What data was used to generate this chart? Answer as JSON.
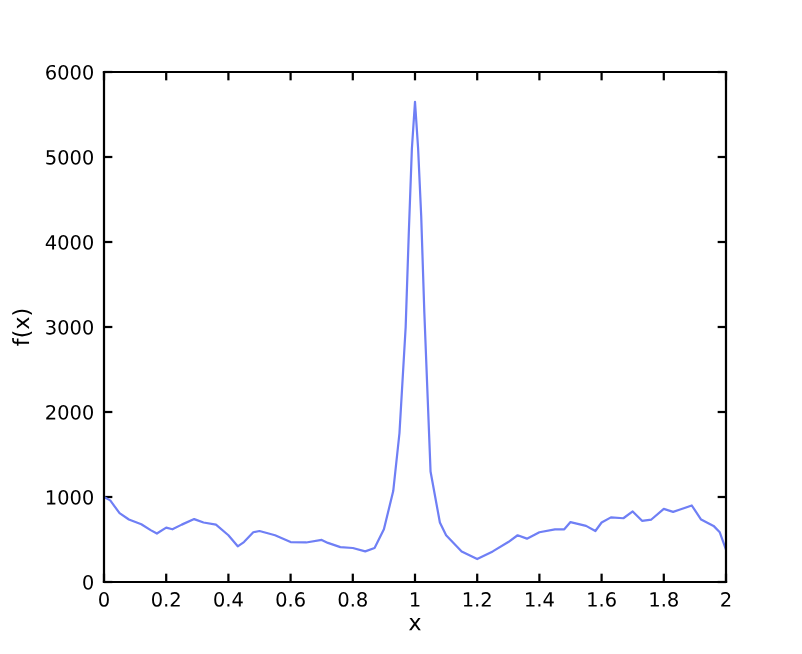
{
  "chart_data": {
    "type": "line",
    "xlabel": "x",
    "ylabel": "f(x)",
    "xlim": [
      0,
      2
    ],
    "ylim": [
      0,
      6000
    ],
    "xticks": [
      0,
      0.2,
      0.4,
      0.6,
      0.8,
      1,
      1.2,
      1.4,
      1.6,
      1.8,
      2
    ],
    "yticks": [
      0,
      1000,
      2000,
      3000,
      4000,
      5000,
      6000
    ],
    "grid": false,
    "legend": false,
    "marker": "none",
    "line_style": "solid",
    "series": [
      {
        "color": "#6f7ff5",
        "x": [
          0,
          0.02,
          0.05,
          0.08,
          0.12,
          0.15,
          0.17,
          0.2,
          0.22,
          0.25,
          0.29,
          0.32,
          0.36,
          0.4,
          0.43,
          0.45,
          0.48,
          0.5,
          0.55,
          0.6,
          0.65,
          0.7,
          0.72,
          0.76,
          0.8,
          0.84,
          0.87,
          0.9,
          0.93,
          0.95,
          0.97,
          0.98,
          0.99,
          1,
          1.01,
          1.02,
          1.03,
          1.05,
          1.08,
          1.1,
          1.15,
          1.2,
          1.25,
          1.3,
          1.33,
          1.36,
          1.4,
          1.45,
          1.48,
          1.5,
          1.55,
          1.58,
          1.6,
          1.63,
          1.67,
          1.7,
          1.73,
          1.76,
          1.8,
          1.83,
          1.85,
          1.89,
          1.92,
          1.96,
          1.98,
          2
        ],
        "values": [
          1000,
          960,
          810,
          735,
          680,
          610,
          570,
          640,
          620,
          675,
          740,
          700,
          675,
          550,
          420,
          470,
          585,
          600,
          550,
          470,
          465,
          495,
          460,
          410,
          400,
          360,
          400,
          620,
          1070,
          1750,
          3000,
          4100,
          5100,
          5650,
          5100,
          4300,
          3170,
          1300,
          700,
          550,
          360,
          270,
          360,
          470,
          550,
          510,
          585,
          620,
          620,
          705,
          660,
          600,
          700,
          760,
          750,
          830,
          720,
          735,
          860,
          825,
          850,
          900,
          735,
          660,
          585,
          380
        ]
      }
    ]
  }
}
